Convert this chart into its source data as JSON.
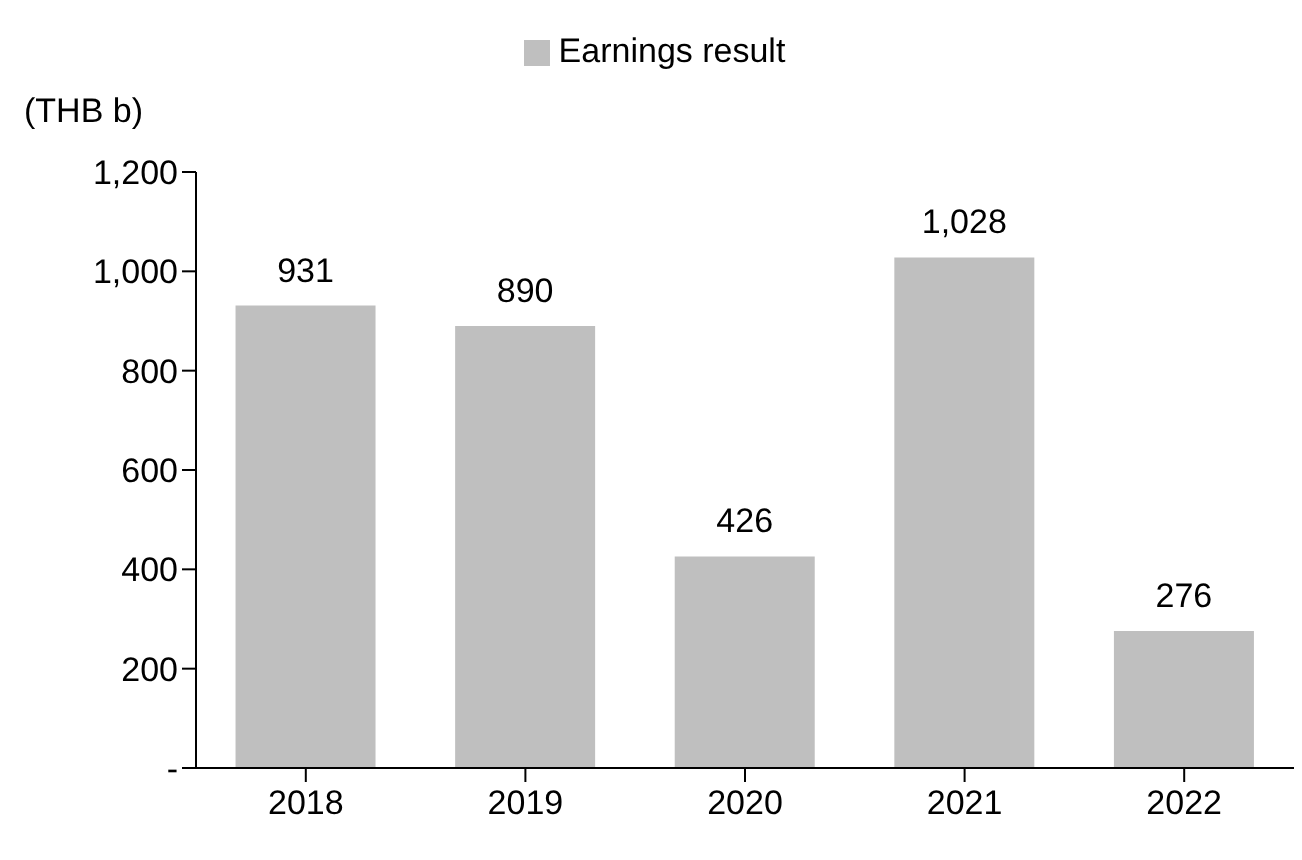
{
  "chart_data": {
    "type": "bar",
    "ylabel": "(THB b)",
    "categories": [
      "2018",
      "2019",
      "2020",
      "2021",
      "2022"
    ],
    "series": [
      {
        "name": "Earnings result",
        "color": "#bfbfbf",
        "values": [
          931,
          890,
          426,
          1028,
          276
        ],
        "value_labels": [
          "931",
          "890",
          "426",
          "1,028",
          "276"
        ]
      }
    ],
    "ylim": [
      0,
      1200
    ],
    "yticks": [
      {
        "value": 0,
        "label": "-"
      },
      200,
      400,
      600,
      800,
      {
        "value": 1000,
        "label": "1,000"
      },
      {
        "value": 1200,
        "label": "1,200"
      }
    ],
    "grid": false,
    "legend": "top"
  }
}
